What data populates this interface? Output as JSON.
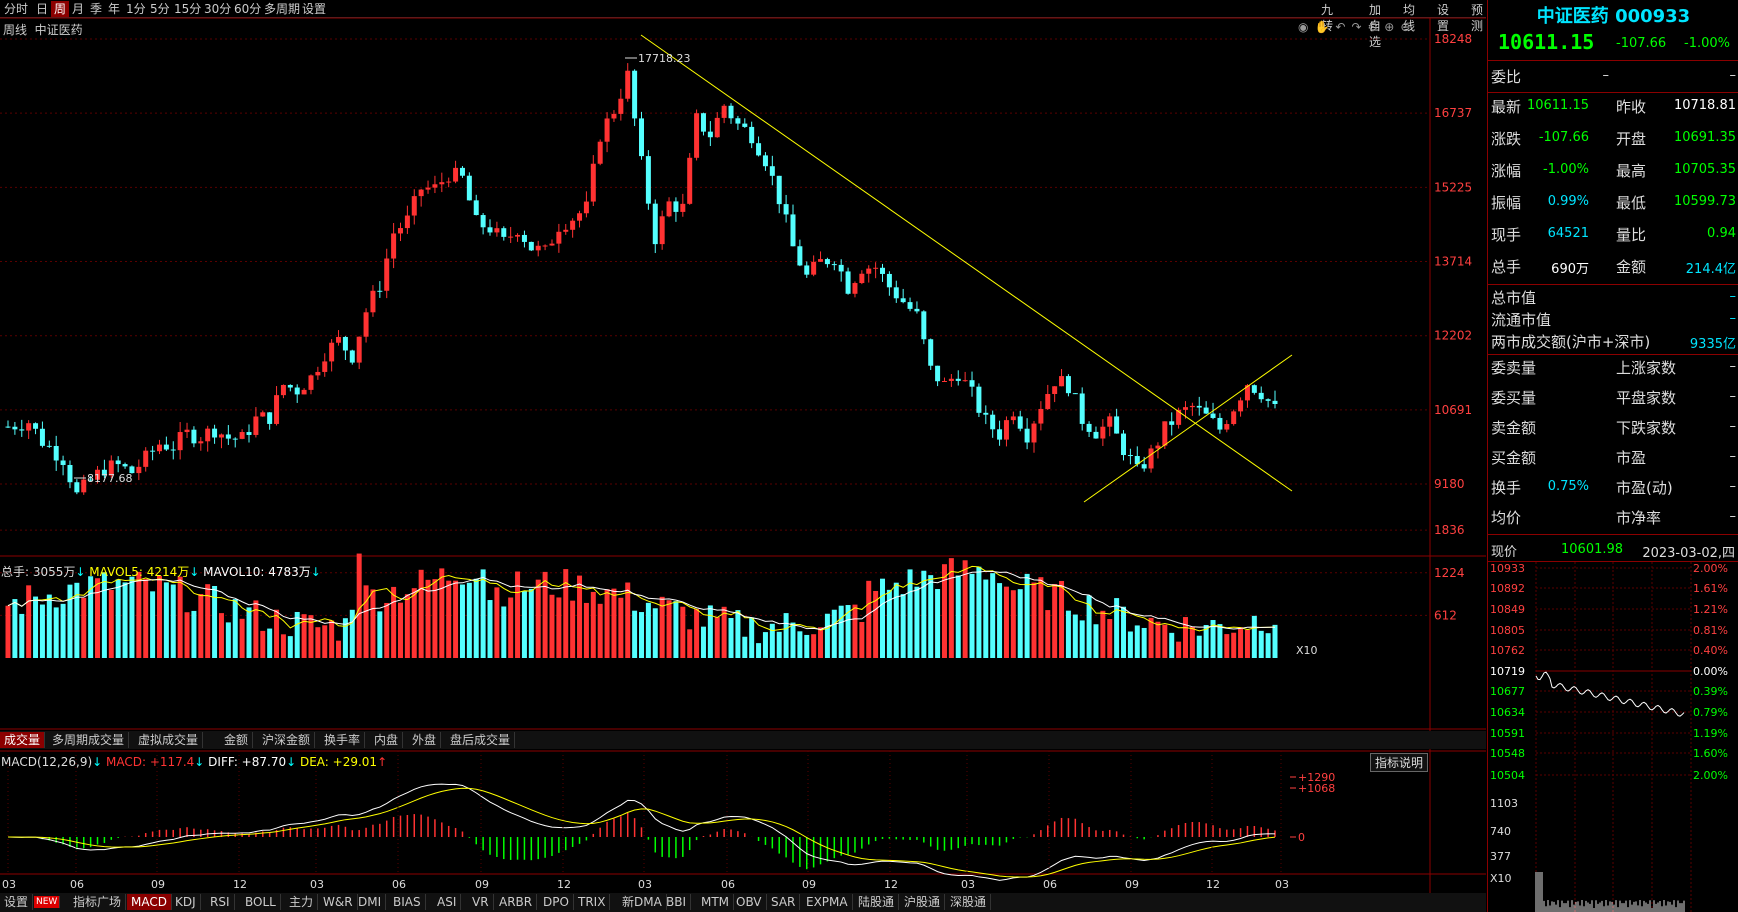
{
  "toolbar": {
    "items": [
      "分时",
      "日",
      "周",
      "月",
      "季",
      "年",
      "1分",
      "5分",
      "15分",
      "30分",
      "60分",
      "多周期",
      "设置"
    ],
    "selected": "周",
    "right_items": [
      "九转",
      "加自选",
      "均线",
      "设置",
      "预测"
    ]
  },
  "chart_title": {
    "period": "周线",
    "name": "中证医药"
  },
  "price_axis": [
    "18248",
    "16737",
    "15225",
    "13714",
    "12202",
    "10691",
    "9180"
  ],
  "price_annotations": {
    "high": "17718.23",
    "low": "8177.68"
  },
  "vol_legend": {
    "total": "总手: 3055万",
    "mavol5": "MAVOL5: 4214万",
    "mavol10": "MAVOL10: 4783万"
  },
  "vol_axis": [
    "1836",
    "1224",
    "612",
    "X10"
  ],
  "vol_tabs": [
    "成交量",
    "多周期成交量",
    "虚拟成交量",
    "金额",
    "沪深金额",
    "换手率",
    "内盘",
    "外盘",
    "盘后成交量"
  ],
  "macd_legend": {
    "label": "MACD(12,26,9)",
    "macd": "MACD: +117.4",
    "diff": "DIFF: +87.70",
    "dea": "DEA: +29.01"
  },
  "macd_axis": [
    "+1290",
    "+1068",
    "0"
  ],
  "macd_button": "指标说明",
  "time_axis": [
    "03",
    "06",
    "09",
    "12",
    "03",
    "06",
    "09",
    "12",
    "03",
    "06",
    "09",
    "12",
    "03"
  ],
  "bottom_tabs": [
    "设置",
    "NEW",
    "指标广场",
    "MACD",
    "KDJ",
    "RSI",
    "BOLL",
    "主力",
    "W&R",
    "DMI",
    "BIAS",
    "ASI",
    "VR",
    "ARBR",
    "DPO",
    "TRIX",
    "新DMA",
    "BBI",
    "MTM",
    "OBV",
    "SAR",
    "EXPMA",
    "陆股通",
    "沪股通",
    "深股通"
  ],
  "quote": {
    "name": "中证医药",
    "code": "000933",
    "price": "10611.15",
    "change": "-107.66",
    "pct": "-1.00%"
  },
  "weibi": {
    "label": "委比",
    "v": "–",
    "v2": "–"
  },
  "rows": [
    {
      "k": "最新",
      "v": "10611.15",
      "k2": "昨收",
      "v2": "10718.81",
      "c1": "#0f0",
      "c2": "#fff"
    },
    {
      "k": "涨跌",
      "v": "-107.66",
      "k2": "开盘",
      "v2": "10691.35",
      "c1": "#0f0",
      "c2": "#0f0"
    },
    {
      "k": "涨幅",
      "v": "-1.00%",
      "k2": "最高",
      "v2": "10705.35",
      "c1": "#0f0",
      "c2": "#0f0"
    },
    {
      "k": "振幅",
      "v": "0.99%",
      "k2": "最低",
      "v2": "10599.73",
      "c1": "#00e5ff",
      "c2": "#0f0"
    },
    {
      "k": "现手",
      "v": "64521",
      "k2": "量比",
      "v2": "0.94",
      "c1": "#00e5ff",
      "c2": "#0f0"
    },
    {
      "k": "总手",
      "v": "690万",
      "k2": "金额",
      "v2": "214.4亿",
      "c1": "#fff",
      "c2": "#00e5ff"
    }
  ],
  "rows2": [
    {
      "k": "总市值",
      "v": "–"
    },
    {
      "k": "流通市值",
      "v": "–"
    },
    {
      "k": "两市成交额(沪市+深市)",
      "v": "9335亿"
    }
  ],
  "rows3": [
    {
      "k": "委卖量",
      "k2": "上涨家数"
    },
    {
      "k": "委买量",
      "k2": "平盘家数"
    },
    {
      "k": "卖金额",
      "k2": "下跌家数"
    },
    {
      "k": "买金额",
      "k2": "市盈"
    },
    {
      "k": "换手",
      "v": "0.75%",
      "k2": "市盈(动)"
    },
    {
      "k": "均价",
      "k2": "市净率"
    }
  ],
  "mini": {
    "label": "现价",
    "price": "10601.98",
    "date": "2023-03-02,四",
    "left": [
      "10933",
      "10892",
      "10849",
      "10805",
      "10762",
      "10719",
      "10677",
      "10634",
      "10591",
      "10548",
      "10504",
      "1103",
      "740",
      "377",
      "X10"
    ],
    "right": [
      "2.00%",
      "1.61%",
      "1.21%",
      "0.81%",
      "0.40%",
      "0.00%",
      "0.39%",
      "0.79%",
      "1.19%",
      "1.60%",
      "2.00%"
    ]
  },
  "colors": {
    "up": "#ff3232",
    "down": "#54ffff",
    "accent": "#8b0000",
    "yellow": "#ffff00"
  }
}
